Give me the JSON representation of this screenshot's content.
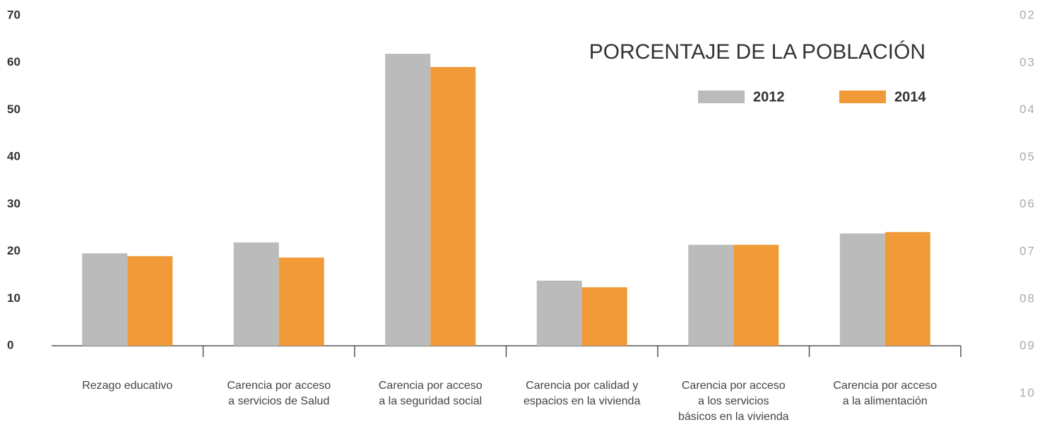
{
  "chart_data": {
    "type": "bar",
    "title": "PORCENTAJE DE LA POBLACIÓN",
    "categories": [
      "Rezago educativo",
      "Carencia por acceso\na servicios de Salud",
      "Carencia por acceso\na la seguridad social",
      "Carencia por calidad y\nespacios en la vivienda",
      "Carencia por acceso\na los servicios\nbásicos en la vivienda",
      "Carencia por acceso\na la alimentación"
    ],
    "series": [
      {
        "name": "2012",
        "color": "#bbbbbb",
        "values": [
          19.6,
          21.9,
          61.9,
          13.8,
          21.4,
          23.8
        ]
      },
      {
        "name": "2014",
        "color": "#f09a38",
        "values": [
          19.0,
          18.7,
          59.1,
          12.4,
          21.4,
          24.1
        ]
      }
    ],
    "ylim": [
      0,
      70
    ],
    "yticks": [
      0,
      10,
      20,
      30,
      40,
      50,
      60,
      70
    ],
    "side_labels": [
      "02",
      "03",
      "04",
      "05",
      "06",
      "07",
      "08",
      "09",
      "10"
    ]
  }
}
